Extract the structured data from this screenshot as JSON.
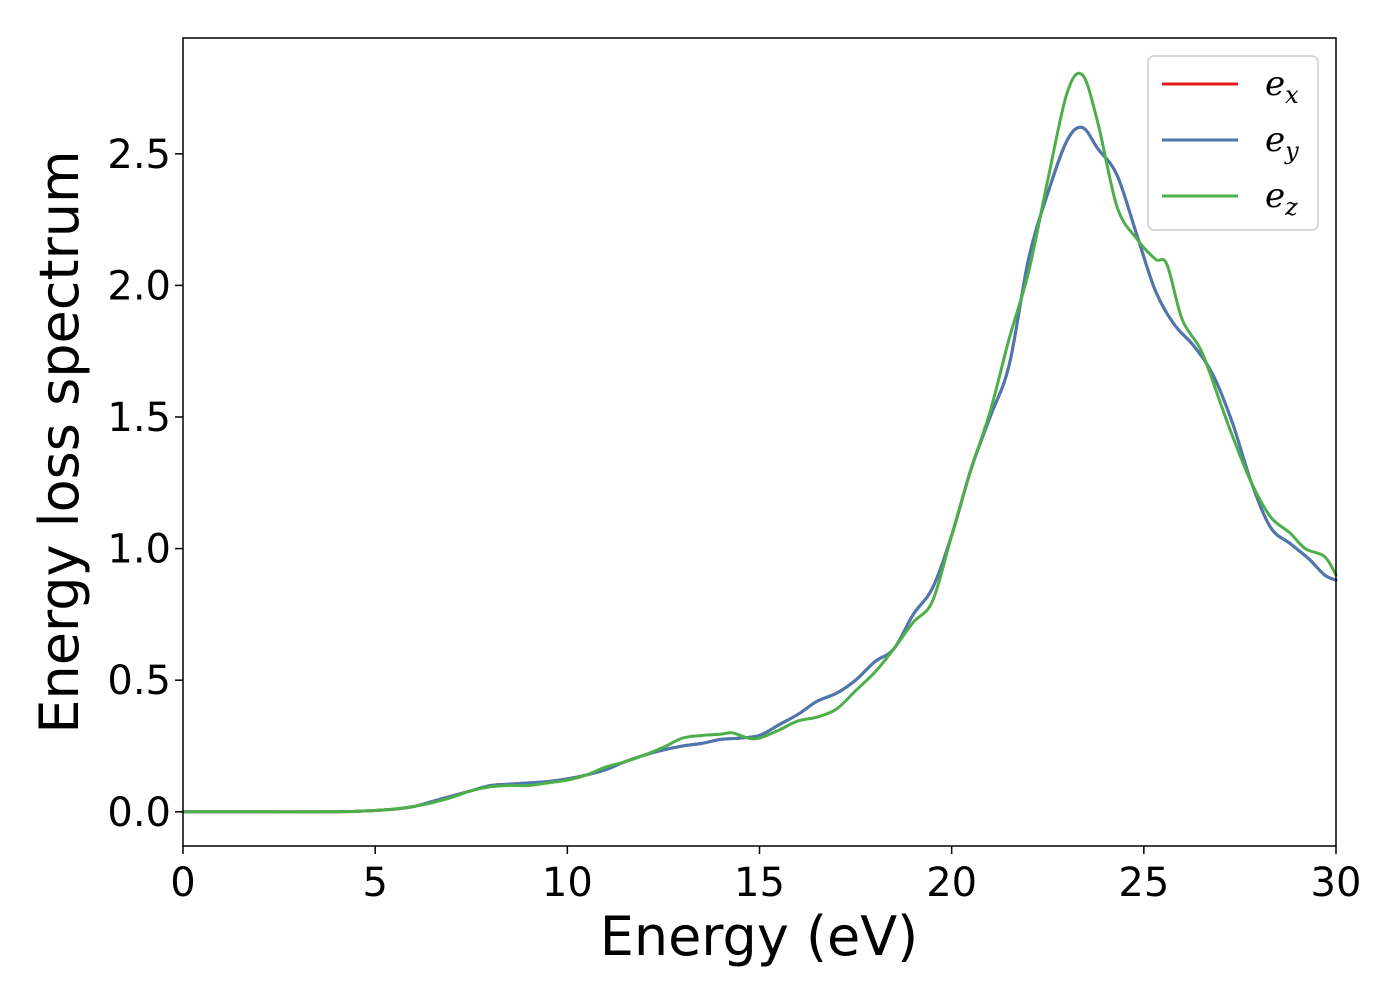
{
  "chart_data": {
    "type": "line",
    "xlabel": "Energy (eV)",
    "ylabel": "Energy loss spectrum",
    "xlim": [
      0,
      30
    ],
    "ylim": [
      -0.13,
      2.94
    ],
    "xticks": [
      0,
      5,
      10,
      15,
      20,
      25,
      30
    ],
    "xtick_labels": [
      "0",
      "5",
      "10",
      "15",
      "20",
      "25",
      "30"
    ],
    "yticks": [
      0.0,
      0.5,
      1.0,
      1.5,
      2.0,
      2.5
    ],
    "ytick_labels": [
      "0.0",
      "0.5",
      "1.0",
      "1.5",
      "2.0",
      "2.5"
    ],
    "grid": false,
    "legend_position": "top-right",
    "series": [
      {
        "name": "e",
        "subscript": "x",
        "color": "#e41a1c",
        "x": [
          0,
          2,
          4,
          5,
          5.5,
          6,
          6.5,
          7,
          7.5,
          8,
          8.5,
          9,
          9.5,
          10,
          10.5,
          11,
          11.5,
          12,
          12.5,
          13,
          13.5,
          14,
          14.5,
          15,
          15.5,
          16,
          16.5,
          17,
          17.5,
          18,
          18.5,
          19,
          19.5,
          20,
          20.5,
          21,
          21.5,
          22,
          22.5,
          23,
          23.4,
          23.8,
          24.3,
          24.8,
          25.3,
          25.8,
          26.3,
          26.8,
          27.3,
          27.8,
          28.3,
          28.8,
          29.3,
          29.7,
          30
        ],
        "y": [
          0,
          0,
          0,
          0.005,
          0.01,
          0.02,
          0.04,
          0.06,
          0.08,
          0.1,
          0.105,
          0.11,
          0.115,
          0.125,
          0.14,
          0.16,
          0.19,
          0.215,
          0.235,
          0.25,
          0.26,
          0.275,
          0.28,
          0.29,
          0.33,
          0.37,
          0.42,
          0.45,
          0.5,
          0.57,
          0.62,
          0.75,
          0.85,
          1.05,
          1.3,
          1.5,
          1.7,
          2.1,
          2.35,
          2.55,
          2.6,
          2.52,
          2.42,
          2.2,
          1.98,
          1.85,
          1.77,
          1.66,
          1.48,
          1.25,
          1.08,
          1.02,
          0.96,
          0.9,
          0.88
        ]
      },
      {
        "name": "e",
        "subscript": "y",
        "color": "#4a78b0",
        "x": [
          0,
          2,
          4,
          5,
          5.5,
          6,
          6.5,
          7,
          7.5,
          8,
          8.5,
          9,
          9.5,
          10,
          10.5,
          11,
          11.5,
          12,
          12.5,
          13,
          13.5,
          14,
          14.5,
          15,
          15.5,
          16,
          16.5,
          17,
          17.5,
          18,
          18.5,
          19,
          19.5,
          20,
          20.5,
          21,
          21.5,
          22,
          22.5,
          23,
          23.4,
          23.8,
          24.3,
          24.8,
          25.3,
          25.8,
          26.3,
          26.8,
          27.3,
          27.8,
          28.3,
          28.8,
          29.3,
          29.7,
          30
        ],
        "y": [
          0,
          0,
          0,
          0.005,
          0.01,
          0.02,
          0.04,
          0.06,
          0.08,
          0.1,
          0.105,
          0.11,
          0.115,
          0.125,
          0.14,
          0.16,
          0.19,
          0.215,
          0.235,
          0.25,
          0.26,
          0.275,
          0.28,
          0.29,
          0.33,
          0.37,
          0.42,
          0.45,
          0.5,
          0.57,
          0.62,
          0.75,
          0.85,
          1.05,
          1.3,
          1.5,
          1.7,
          2.1,
          2.35,
          2.55,
          2.6,
          2.52,
          2.42,
          2.2,
          1.98,
          1.85,
          1.77,
          1.66,
          1.48,
          1.25,
          1.08,
          1.02,
          0.96,
          0.9,
          0.88
        ]
      },
      {
        "name": "e",
        "subscript": "z",
        "color": "#4daf4a",
        "x": [
          0,
          2,
          4,
          5,
          5.5,
          6,
          6.5,
          7,
          7.5,
          8,
          8.5,
          9,
          9.5,
          10,
          10.5,
          11,
          11.5,
          12,
          12.5,
          13,
          13.5,
          14,
          14.3,
          14.7,
          15,
          15.5,
          16,
          16.5,
          17,
          17.5,
          18,
          18.5,
          19,
          19.5,
          20,
          20.5,
          21,
          21.5,
          22,
          22.5,
          23,
          23.4,
          23.8,
          24.3,
          24.8,
          25.3,
          25.6,
          26,
          26.5,
          27,
          27.3,
          27.8,
          28.3,
          28.8,
          29.2,
          29.7,
          30
        ],
        "y": [
          0,
          0,
          0,
          0.005,
          0.01,
          0.02,
          0.035,
          0.055,
          0.08,
          0.095,
          0.1,
          0.1,
          0.11,
          0.12,
          0.14,
          0.17,
          0.19,
          0.215,
          0.245,
          0.28,
          0.29,
          0.295,
          0.3,
          0.28,
          0.28,
          0.31,
          0.345,
          0.36,
          0.39,
          0.46,
          0.53,
          0.62,
          0.72,
          0.8,
          1.05,
          1.3,
          1.52,
          1.8,
          2.05,
          2.4,
          2.73,
          2.8,
          2.62,
          2.3,
          2.18,
          2.1,
          2.08,
          1.87,
          1.75,
          1.55,
          1.43,
          1.25,
          1.12,
          1.06,
          1.0,
          0.97,
          0.9
        ]
      }
    ]
  }
}
